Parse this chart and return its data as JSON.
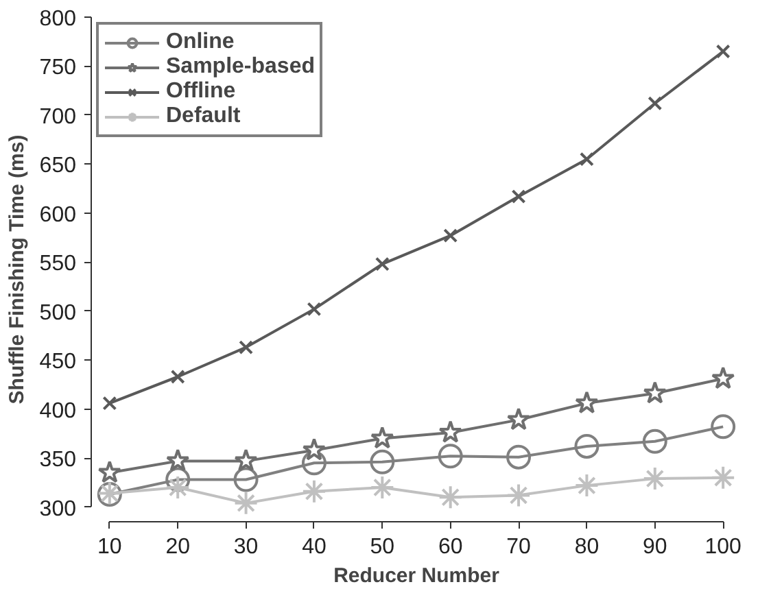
{
  "chart_data": {
    "type": "line",
    "xlabel": "Reducer Number",
    "ylabel": "Shuffle Finishing Time (ms)",
    "x": [
      10,
      20,
      30,
      40,
      50,
      60,
      70,
      80,
      90,
      100
    ],
    "xlim": [
      10,
      100
    ],
    "xticks": [
      10,
      20,
      30,
      40,
      50,
      60,
      70,
      80,
      90,
      100
    ],
    "ylim": [
      300,
      800
    ],
    "yticks": [
      300,
      350,
      400,
      450,
      500,
      550,
      600,
      650,
      700,
      750,
      800
    ],
    "grid": false,
    "legend": "top left",
    "line_style": "solid",
    "series": [
      {
        "name": "Online",
        "color": "#808080",
        "marker": "circle",
        "values": [
          313,
          328,
          328,
          345,
          346,
          352,
          351,
          362,
          367,
          382
        ]
      },
      {
        "name": "Sample-based",
        "color": "#6e6e6e",
        "marker": "star",
        "values": [
          335,
          347,
          347,
          358,
          370,
          376,
          389,
          406,
          416,
          431
        ]
      },
      {
        "name": "Offline",
        "color": "#595959",
        "marker": "x",
        "values": [
          406,
          433,
          463,
          502,
          548,
          577,
          617,
          655,
          712,
          765
        ]
      },
      {
        "name": "Default",
        "color": "#c0c0c0",
        "marker": "cross",
        "values": [
          314,
          320,
          304,
          316,
          320,
          310,
          312,
          322,
          329,
          330
        ]
      }
    ]
  }
}
